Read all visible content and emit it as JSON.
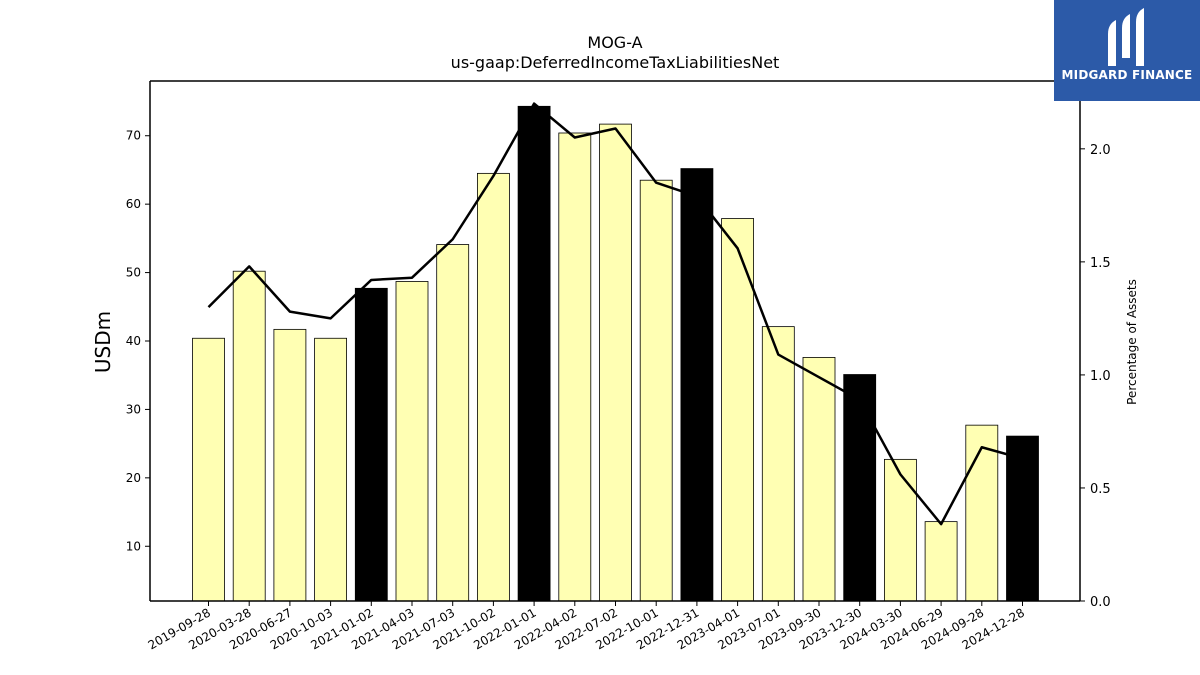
{
  "title": "MOG-A",
  "subtitle": "us-gaap:DeferredIncomeTaxLiabilitiesNet",
  "logo_text": "MIDGARD FINANCE",
  "colors": {
    "bar_light": "#ffffb3",
    "bar_dark": "#000000",
    "line": "#000000",
    "logo_bg": "#2c5aa8"
  },
  "chart_data": {
    "type": "bar",
    "categories": [
      "2019-09-28",
      "2020-03-28",
      "2020-06-27",
      "2020-10-03",
      "2021-01-02",
      "2021-04-03",
      "2021-07-03",
      "2021-10-02",
      "2022-01-01",
      "2022-04-02",
      "2022-07-02",
      "2022-10-01",
      "2022-12-31",
      "2023-04-01",
      "2023-07-01",
      "2023-09-30",
      "2023-12-30",
      "2024-03-30",
      "2024-06-29",
      "2024-09-28",
      "2024-12-28"
    ],
    "series": [
      {
        "axis": "left",
        "type": "bar",
        "values": [
          40.4,
          50.2,
          41.7,
          40.4,
          47.7,
          48.7,
          54.1,
          64.5,
          74.3,
          70.4,
          71.7,
          63.5,
          65.2,
          57.9,
          42.1,
          37.6,
          35.1,
          22.7,
          13.6,
          27.7,
          26.1
        ],
        "highlight": [
          false,
          false,
          false,
          false,
          true,
          false,
          false,
          false,
          true,
          false,
          false,
          false,
          true,
          false,
          false,
          false,
          true,
          false,
          false,
          false,
          true
        ]
      },
      {
        "axis": "right",
        "type": "line",
        "values": [
          1.3,
          1.48,
          1.28,
          1.25,
          1.42,
          1.43,
          1.6,
          1.88,
          2.2,
          2.05,
          2.09,
          1.85,
          1.79,
          1.56,
          1.09,
          0.99,
          0.89,
          0.56,
          0.34,
          0.68,
          0.63
        ]
      }
    ],
    "ylabel": "USDm",
    "y2label": "Percentage of Assets",
    "ylim": [
      2,
      78
    ],
    "y2lim": [
      0,
      2.3
    ],
    "yticks": [
      "10",
      "20",
      "30",
      "40",
      "50",
      "60",
      "70"
    ],
    "y2ticks": [
      "0.0",
      "0.5",
      "1.0",
      "1.5",
      "2.0"
    ],
    "grid": false,
    "legend": "none"
  }
}
